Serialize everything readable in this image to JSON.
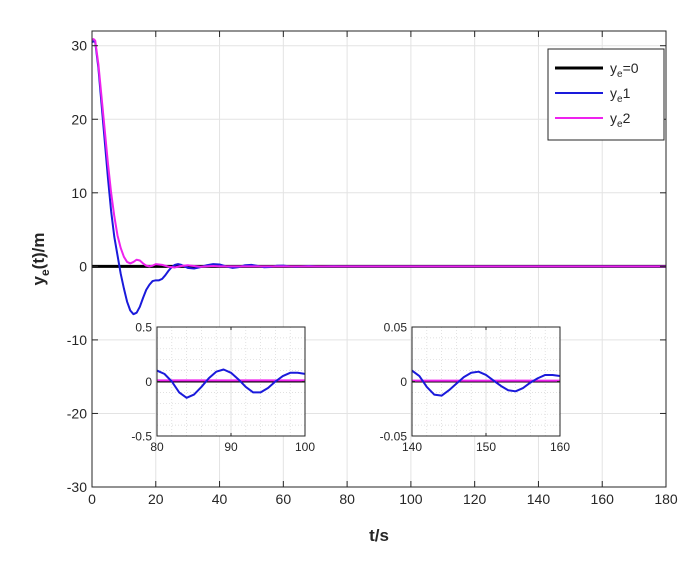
{
  "chart_data": [
    {
      "type": "line",
      "xlabel": "t/s",
      "ylabel": "y",
      "ylabel_sub": "e",
      "ylabel_tail": "(t)/m",
      "xlim": [
        0,
        180
      ],
      "ylim": [
        -30,
        32
      ],
      "xticks": [
        0,
        20,
        40,
        60,
        80,
        100,
        120,
        140,
        160,
        180
      ],
      "yticks": [
        -30,
        -20,
        -10,
        0,
        10,
        20,
        30
      ],
      "grid": true,
      "legend_position": "top-right",
      "series": [
        {
          "name": "y_e=0",
          "label_main": "y",
          "label_sub": "e",
          "label_tail": "=0",
          "color": "#000000",
          "x": [
            0,
            180
          ],
          "y": [
            0,
            0
          ]
        },
        {
          "name": "y_e1",
          "label_main": "y",
          "label_sub": "e",
          "label_tail": "1",
          "color": "#1a1adb",
          "x": [
            0,
            0.5,
            1,
            2,
            3,
            4,
            5,
            6,
            7,
            8,
            9,
            10,
            11,
            12,
            13,
            14,
            15,
            16,
            17,
            18,
            19,
            20,
            21,
            22,
            23,
            24,
            25,
            26,
            27,
            28,
            30,
            32,
            34,
            36,
            38,
            40,
            42,
            44,
            46,
            48,
            50,
            52,
            54,
            56,
            58,
            60,
            62,
            64,
            66,
            68,
            70,
            72,
            74,
            76,
            78,
            80,
            90,
            100,
            120,
            140,
            160,
            180
          ],
          "y": [
            30.5,
            30.6,
            30.5,
            27,
            22,
            17,
            12,
            7.5,
            4,
            1.5,
            -1,
            -3,
            -4.8,
            -6,
            -6.5,
            -6.3,
            -5.5,
            -4.3,
            -3.2,
            -2.5,
            -2,
            -1.9,
            -1.9,
            -1.7,
            -1.2,
            -0.6,
            -0.1,
            0.2,
            0.3,
            0.2,
            -0.2,
            -0.3,
            -0.1,
            0.15,
            0.3,
            0.25,
            0,
            -0.2,
            -0.1,
            0.15,
            0.2,
            0.05,
            -0.12,
            -0.08,
            0.08,
            0.1,
            0,
            -0.06,
            0,
            0.04,
            0,
            -0.02,
            0,
            0.01,
            0,
            0,
            0,
            0,
            0,
            0,
            0,
            0
          ]
        },
        {
          "name": "y_e2",
          "label_main": "y",
          "label_sub": "e",
          "label_tail": "2",
          "color": "#ee22ee",
          "x": [
            0,
            0.5,
            1,
            2,
            3,
            4,
            5,
            6,
            7,
            8,
            9,
            10,
            11,
            12,
            13,
            14,
            15,
            16,
            17,
            18,
            19,
            20,
            22,
            24,
            26,
            28,
            30,
            32,
            34,
            36,
            38,
            40,
            45,
            50,
            60,
            80,
            100,
            120,
            140,
            160,
            180
          ],
          "y": [
            30.8,
            30.9,
            30.7,
            27.5,
            23,
            18.5,
            14,
            10,
            6.8,
            4.2,
            2.5,
            1.3,
            0.6,
            0.4,
            0.6,
            0.9,
            0.8,
            0.4,
            0.1,
            0,
            0.1,
            0.3,
            0.2,
            -0.05,
            -0.15,
            0.05,
            0.15,
            0.05,
            -0.05,
            0,
            0.05,
            0,
            0,
            0,
            0,
            0,
            0,
            0,
            0,
            0,
            0
          ]
        }
      ]
    },
    {
      "type": "line",
      "xlim": [
        80,
        100
      ],
      "ylim": [
        -0.5,
        0.5
      ],
      "xticks": [
        80,
        90,
        100
      ],
      "yticks": [
        -0.5,
        0,
        0.5
      ],
      "ytick_labels": [
        "-0.5",
        "0",
        "0.5"
      ],
      "grid": true,
      "series": [
        {
          "name": "y_e=0",
          "color": "#000000",
          "x": [
            80,
            100
          ],
          "y": [
            0,
            0
          ]
        },
        {
          "name": "y_e1",
          "color": "#1a1adb",
          "x": [
            80,
            81,
            82,
            83,
            84,
            85,
            86,
            87,
            88,
            89,
            90,
            91,
            92,
            93,
            94,
            95,
            96,
            97,
            98,
            99,
            100
          ],
          "y": [
            0.1,
            0.07,
            0,
            -0.1,
            -0.15,
            -0.12,
            -0.05,
            0.03,
            0.09,
            0.11,
            0.08,
            0.02,
            -0.05,
            -0.1,
            -0.1,
            -0.06,
            0,
            0.05,
            0.08,
            0.08,
            0.07
          ]
        },
        {
          "name": "y_e2",
          "color": "#ee22ee",
          "x": [
            80,
            100
          ],
          "y": [
            0.01,
            0.01
          ]
        }
      ]
    },
    {
      "type": "line",
      "xlim": [
        140,
        160
      ],
      "ylim": [
        -0.05,
        0.05
      ],
      "xticks": [
        140,
        150,
        160
      ],
      "yticks": [
        -0.05,
        0,
        0.05
      ],
      "ytick_labels": [
        "-0.05",
        "0",
        "0.05"
      ],
      "grid": true,
      "series": [
        {
          "name": "y_e=0",
          "color": "#000000",
          "x": [
            140,
            160
          ],
          "y": [
            0,
            0
          ]
        },
        {
          "name": "y_e1",
          "color": "#1a1adb",
          "x": [
            140,
            141,
            142,
            143,
            144,
            145,
            146,
            147,
            148,
            149,
            150,
            151,
            152,
            153,
            154,
            155,
            156,
            157,
            158,
            159,
            160
          ],
          "y": [
            0.01,
            0.005,
            -0.005,
            -0.012,
            -0.013,
            -0.008,
            -0.002,
            0.004,
            0.008,
            0.009,
            0.006,
            0.001,
            -0.004,
            -0.008,
            -0.009,
            -0.006,
            -0.001,
            0.003,
            0.006,
            0.006,
            0.005
          ]
        },
        {
          "name": "y_e2",
          "color": "#ee22ee",
          "x": [
            140,
            160
          ],
          "y": [
            0.0008,
            0.0008
          ]
        }
      ]
    }
  ]
}
